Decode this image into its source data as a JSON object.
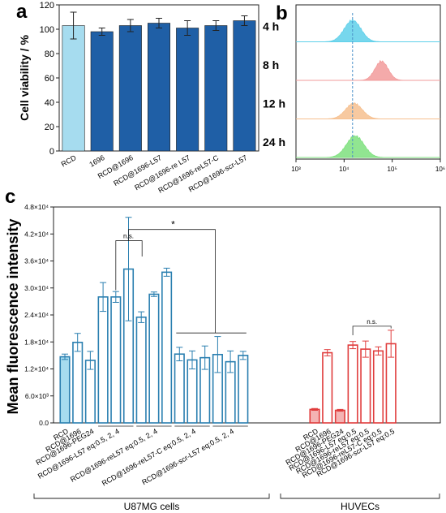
{
  "panels": {
    "a": "a",
    "b": "b",
    "c": "c"
  },
  "chart_data": [
    {
      "panel": "a",
      "type": "bar",
      "ylabel": "Cell viability / %",
      "ylim": [
        0,
        120
      ],
      "yticks": [
        0,
        20,
        40,
        60,
        80,
        100,
        120
      ],
      "categories": [
        "RCD",
        "1696",
        "RCD@1696",
        "RCD@1696-L57",
        "RCD@1696-re L57",
        "RCD@1696-reL57-C",
        "RCD@1696-scr-L57"
      ],
      "values": [
        103,
        98,
        103,
        105,
        101,
        103,
        107
      ],
      "errors": [
        11,
        3,
        5,
        4,
        6,
        4,
        4
      ],
      "colors": [
        "#a6dcef",
        "#1f5fa6",
        "#1f5fa6",
        "#1f5fa6",
        "#1f5fa6",
        "#1f5fa6",
        "#1f5fa6"
      ]
    },
    {
      "panel": "b",
      "type": "area",
      "x_scale": "log",
      "xlim": [
        1000,
        1000000
      ],
      "xtick_labels": [
        "10³",
        "10⁴",
        "10⁵",
        "10⁶"
      ],
      "reference_line_x": 15000,
      "series": [
        {
          "name": "4 h",
          "color": "#5fd0ea",
          "peak_x": 15000,
          "peak_height": 0.62,
          "width_decades": 0.38
        },
        {
          "name": "8 h",
          "color": "#f29b9b",
          "peak_x": 60000,
          "peak_height": 0.55,
          "width_decades": 0.3
        },
        {
          "name": "12 h",
          "color": "#f6c08f",
          "peak_x": 16000,
          "peak_height": 0.45,
          "width_decades": 0.38
        },
        {
          "name": "24 h",
          "color": "#7ee07e",
          "peak_x": 17000,
          "peak_height": 0.62,
          "width_decades": 0.4
        }
      ]
    },
    {
      "panel": "c",
      "type": "bar",
      "ylabel": "Mean fluorescence intensity",
      "ylim": [
        0,
        48000
      ],
      "yticks": [
        0,
        6000,
        12000,
        18000,
        24000,
        30000,
        36000,
        42000,
        48000
      ],
      "ytick_labels": [
        "0.0",
        "6.0×10³",
        "1.2×10⁴",
        "1.8×10⁴",
        "2.4×10⁴",
        "3.0×10⁴",
        "3.6×10⁴",
        "4.2×10⁴",
        "4.8×10⁴"
      ],
      "bars": [
        {
          "group": "u87",
          "value": 14700,
          "error": 600
        },
        {
          "group": "u87",
          "value": 17900,
          "error": 2000
        },
        {
          "group": "u87",
          "value": 13900,
          "error": 2000
        },
        {
          "group": "u87",
          "value": 28000,
          "error": 3200
        },
        {
          "group": "u87",
          "value": 28000,
          "error": 1200
        },
        {
          "group": "u87",
          "value": 34200,
          "error": 11500
        },
        {
          "group": "u87",
          "value": 23500,
          "error": 1200
        },
        {
          "group": "u87",
          "value": 28600,
          "error": 500
        },
        {
          "group": "u87",
          "value": 33500,
          "error": 900
        },
        {
          "group": "u87",
          "value": 15300,
          "error": 1500
        },
        {
          "group": "u87",
          "value": 14000,
          "error": 2000
        },
        {
          "group": "u87",
          "value": 14500,
          "error": 2600
        },
        {
          "group": "u87",
          "value": 15200,
          "error": 4000
        },
        {
          "group": "u87",
          "value": 13600,
          "error": 2400
        },
        {
          "group": "u87",
          "value": 15000,
          "error": 900
        },
        {
          "group": "huvec",
          "value": 3000,
          "error": 200
        },
        {
          "group": "huvec",
          "value": 15600,
          "error": 700
        },
        {
          "group": "huvec",
          "value": 2800,
          "error": 200
        },
        {
          "group": "huvec",
          "value": 17300,
          "error": 800
        },
        {
          "group": "huvec",
          "value": 16400,
          "error": 1800
        },
        {
          "group": "huvec",
          "value": 16000,
          "error": 900
        },
        {
          "group": "huvec",
          "value": 17600,
          "error": 3000
        }
      ],
      "category_labels": [
        {
          "text": "RCD",
          "bar": 0
        },
        {
          "text": "RCD@1696",
          "bar": 1
        },
        {
          "text": "RCD@1696-PEG24",
          "bar": 2
        },
        {
          "text": "RCD@1696-L57 eq:0.5, 2, 4",
          "bar": 4
        },
        {
          "text": "RCD@1696-reL57 eq:0.5, 2, 4",
          "bar": 7
        },
        {
          "text": "RCD@1696-reL57-C eq:0.5, 2, 4",
          "bar": 10
        },
        {
          "text": "RCD@1696-scr-L57 eq:0.5, 2, 4",
          "bar": 13
        },
        {
          "text": "RCD",
          "bar": 15
        },
        {
          "text": "RCD@1696",
          "bar": 16
        },
        {
          "text": "RCD@1696-PEG24",
          "bar": 17
        },
        {
          "text": "RCD@1696-L57 eq:0.5",
          "bar": 18
        },
        {
          "text": "RCD@1696-reL57 eq:0.5",
          "bar": 19
        },
        {
          "text": "RCD@1696-reL57-C eq:0.5",
          "bar": 20
        },
        {
          "text": "RCD@1696-scr-L57 eq:0.5",
          "bar": 21
        }
      ],
      "annotations": {
        "ns_1": "n.s.",
        "star": "*",
        "ns_2": "n.s."
      },
      "groups": {
        "u87": "U87MG cells",
        "huvec": "HUVECs"
      },
      "colors": {
        "u87": "#2a7fb0",
        "u87_first_fill": "#a6dcef",
        "huvec": "#e03c3c",
        "huvec_fill": "#f4b3b3"
      }
    }
  ]
}
